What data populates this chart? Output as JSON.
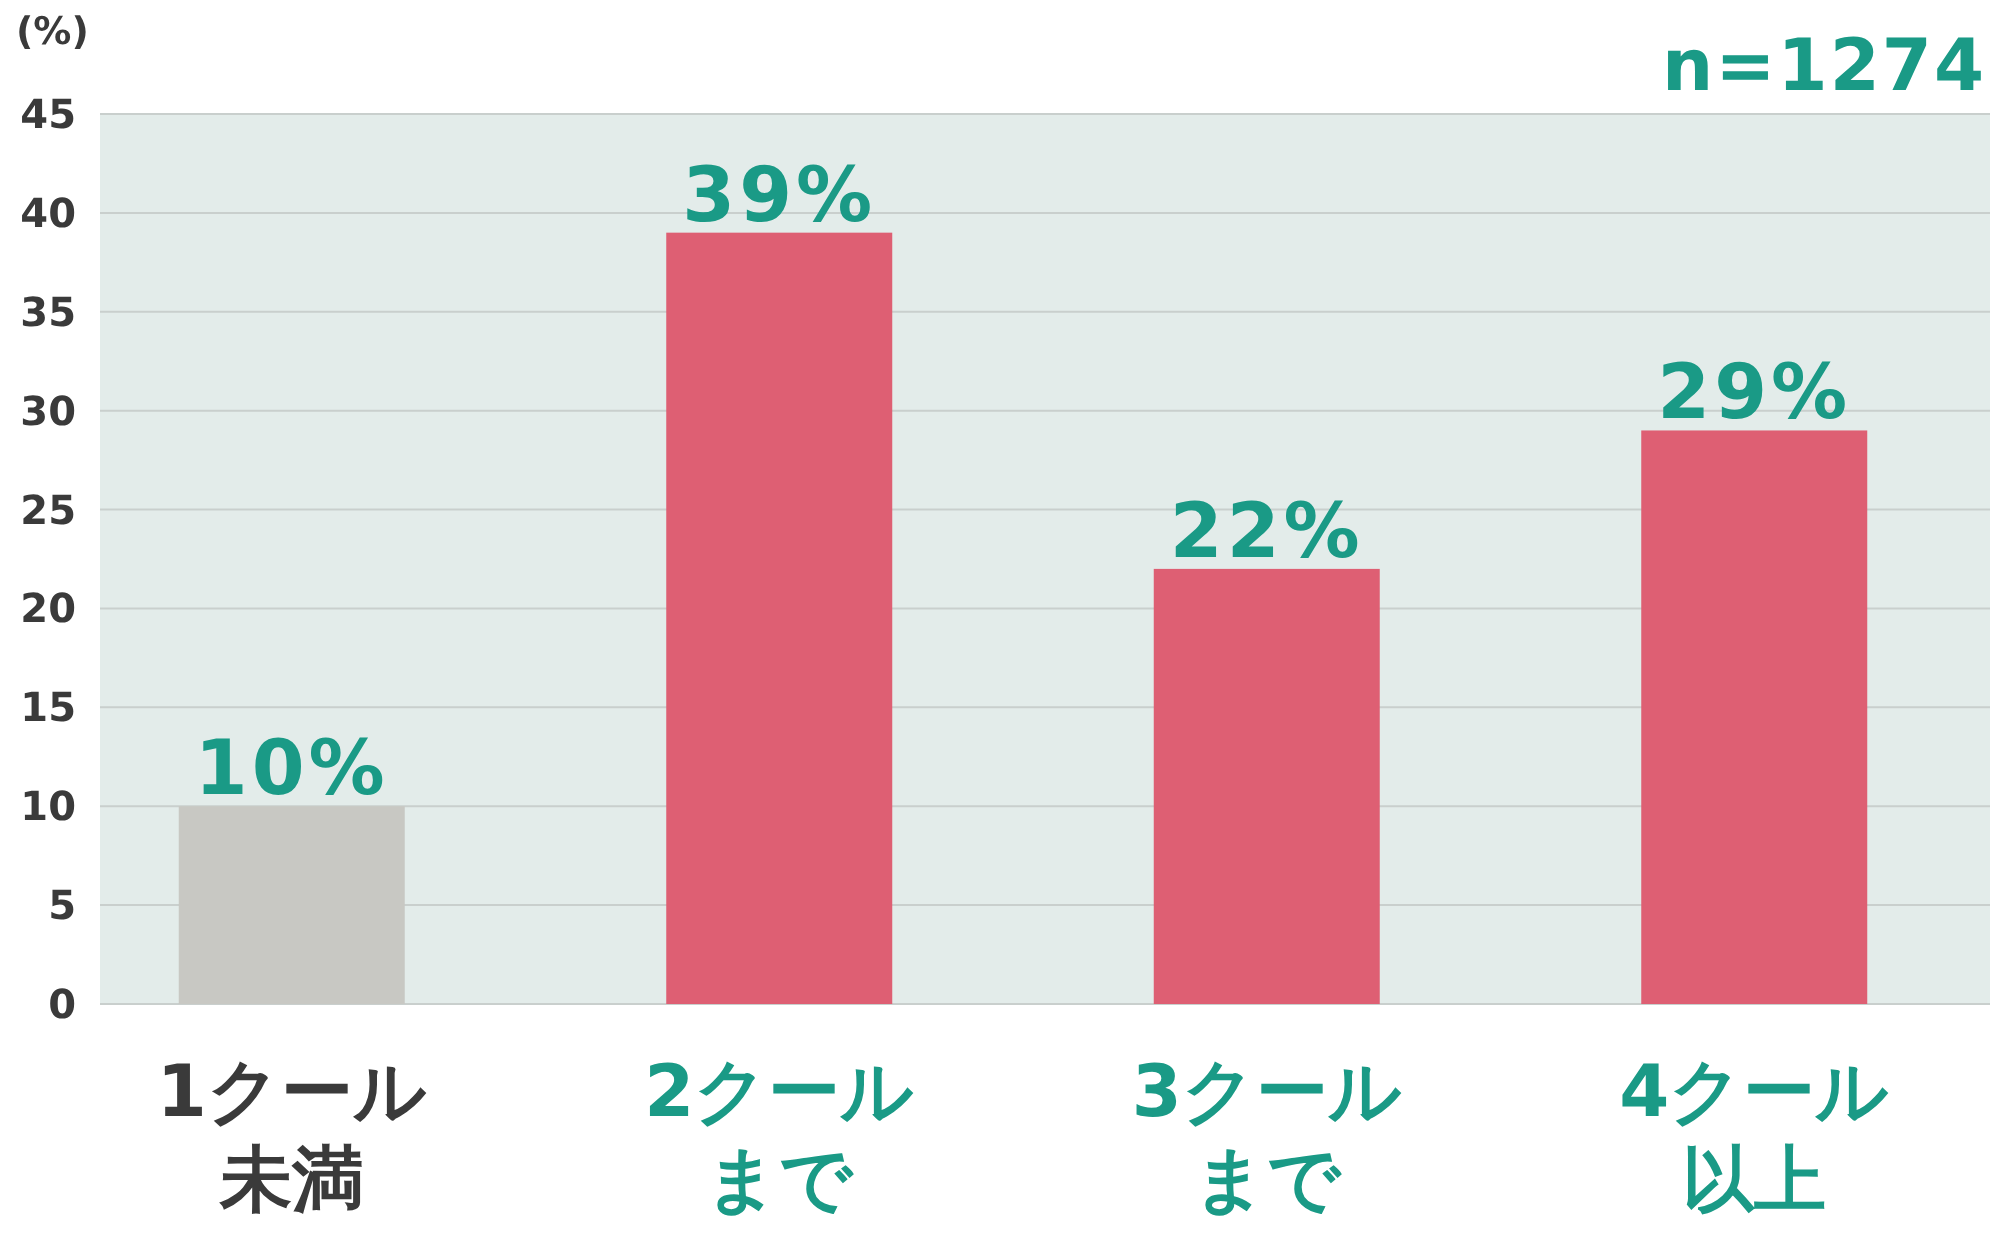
{
  "chart_data": {
    "type": "bar",
    "ylabel": "(%)",
    "annotations": [
      "n=1274"
    ],
    "categories": [
      "1クール未満",
      "2クールまで",
      "3クールまで",
      "4クール以上"
    ],
    "values": [
      10,
      39,
      22,
      29
    ],
    "colors": [
      "#c8c8c3",
      "#de5f73",
      "#de5f73",
      "#de5f73"
    ],
    "value_labels": [
      "10%",
      "39%",
      "22%",
      "29%"
    ],
    "ylim": [
      0,
      45
    ],
    "yticks": [
      0,
      5,
      10,
      15,
      20,
      25,
      30,
      35,
      40,
      45
    ],
    "grid": "y"
  }
}
